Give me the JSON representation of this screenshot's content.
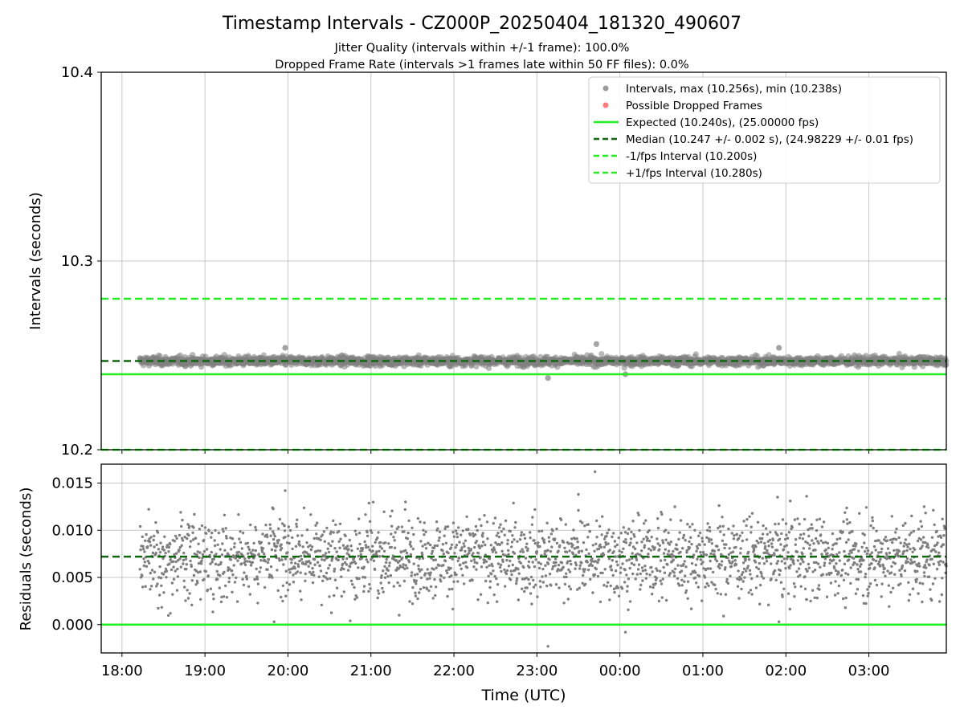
{
  "title": "Timestamp Intervals - CZ000P_20250404_181320_490607",
  "subtitle_lines": [
    "Jitter Quality (intervals within +/-1 frame): 100.0%",
    "Dropped Frame Rate (intervals >1 frames late within 50 FF files): 0.0%"
  ],
  "colors": {
    "points": "#7f7f7f",
    "dropped": "#ff5a5a",
    "expected": "#22ee22",
    "median": "#116611",
    "grid": "#b0b0b0"
  },
  "chart_data": [
    {
      "type": "scatter",
      "name": "intervals",
      "ylabel": "Intervals (seconds)",
      "ylim": [
        10.2,
        10.4
      ],
      "yticks": [
        "10.2",
        "10.3",
        "10.4"
      ],
      "xlim": [
        "17:45",
        "03:56"
      ],
      "grid": true,
      "legend_position": "top-right",
      "legend": [
        "Intervals, max (10.256s), min (10.238s)",
        "Possible Dropped Frames",
        "Expected (10.240s), (25.00000 fps)",
        "Median (10.247 +/- 0.002 s), (24.98229 +/- 0.01 fps)",
        "-1/fps Interval (10.200s)",
        "+1/fps Interval (10.280s)"
      ],
      "reference_lines": {
        "expected": 10.24,
        "median": 10.247,
        "minus_1_fps": 10.2,
        "plus_1_fps": 10.28
      },
      "stats": {
        "max": 10.256,
        "min": 10.238,
        "median": 10.247,
        "spread": 0.002
      },
      "x_start": "18:13",
      "x_end": "03:56",
      "dropped_frames": [],
      "outliers": [
        {
          "x": "23:08",
          "y": 10.238
        },
        {
          "x": "23:43",
          "y": 10.256
        },
        {
          "x": "00:04",
          "y": 10.24
        },
        {
          "x": "19:58",
          "y": 10.254
        },
        {
          "x": "01:55",
          "y": 10.254
        }
      ]
    },
    {
      "type": "scatter",
      "name": "residuals",
      "xlabel": "Time (UTC)",
      "ylabel": "Residuals (seconds)",
      "ylim": [
        -0.003,
        0.017
      ],
      "yticks": [
        "0.000",
        "0.005",
        "0.010",
        "0.015"
      ],
      "xticks": [
        "18:00",
        "19:00",
        "20:00",
        "21:00",
        "22:00",
        "23:00",
        "00:00",
        "01:00",
        "02:00",
        "03:00"
      ],
      "xlim": [
        "17:45",
        "03:56"
      ],
      "grid": true,
      "reference_lines": {
        "zero": 0.0,
        "median": 0.0072
      },
      "stats": {
        "median": 0.0072,
        "spread": 0.002
      },
      "x_start": "18:13",
      "x_end": "03:56",
      "outliers": [
        {
          "x": "23:08",
          "y": -0.0023
        },
        {
          "x": "23:42",
          "y": 0.0162
        },
        {
          "x": "00:04",
          "y": -0.0008
        },
        {
          "x": "19:58",
          "y": 0.0142
        },
        {
          "x": "23:30",
          "y": 0.0138
        },
        {
          "x": "01:54",
          "y": 0.0135
        },
        {
          "x": "02:15",
          "y": 0.0136
        },
        {
          "x": "18:35",
          "y": 0.0012
        },
        {
          "x": "19:50",
          "y": 0.0003
        },
        {
          "x": "20:45",
          "y": 0.0004
        },
        {
          "x": "01:55",
          "y": 0.0003
        },
        {
          "x": "02:43",
          "y": 0.0018
        },
        {
          "x": "21:25",
          "y": 0.013
        },
        {
          "x": "03:40",
          "y": 0.0125
        }
      ]
    }
  ]
}
